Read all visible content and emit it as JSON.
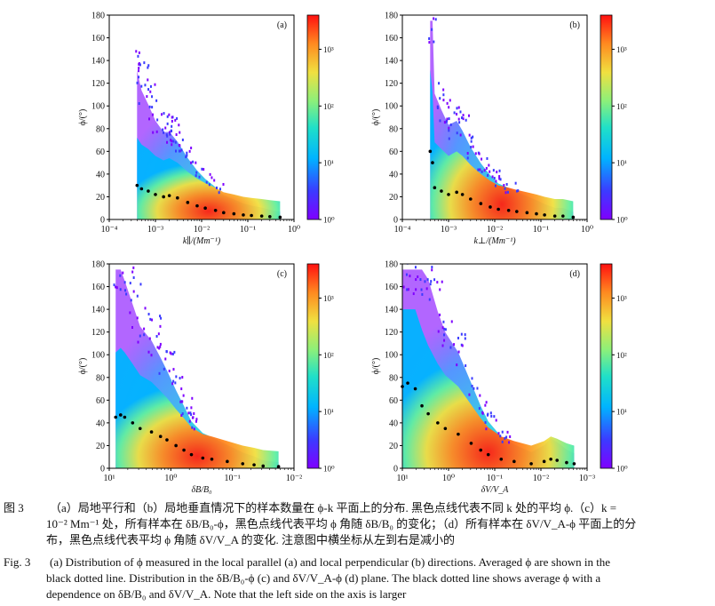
{
  "panels": [
    {
      "id": "a",
      "letter": "(a)",
      "xlabel": "k∥/(Mm⁻¹)",
      "ylabel": "ϕ/(°)",
      "xaxis_direction": "increasing",
      "xtick_labels": [
        "10⁻⁴",
        "10⁻³",
        "10⁻²",
        "10⁻¹",
        "10⁰"
      ],
      "ytick_labels": [
        "0",
        "20",
        "40",
        "60",
        "80",
        "100",
        "120",
        "140",
        "160",
        "180"
      ],
      "colorbar_labels": [
        "10⁰",
        "10¹",
        "10²",
        "10³"
      ]
    },
    {
      "id": "b",
      "letter": "(b)",
      "xlabel": "k⊥/(Mm⁻¹)",
      "ylabel": "ϕ/(°)",
      "xaxis_direction": "increasing",
      "xtick_labels": [
        "10⁻⁴",
        "10⁻³",
        "10⁻²",
        "10⁻¹",
        "10⁰"
      ],
      "ytick_labels": [
        "0",
        "20",
        "40",
        "60",
        "80",
        "100",
        "120",
        "140",
        "160",
        "180"
      ],
      "colorbar_labels": [
        "10⁰",
        "10¹",
        "10²",
        "10³"
      ]
    },
    {
      "id": "c",
      "letter": "(c)",
      "xlabel": "δB/B₀",
      "ylabel": "ϕ/(°)",
      "xaxis_direction": "decreasing",
      "xtick_labels": [
        "10¹",
        "10⁰",
        "10⁻¹",
        "10⁻²"
      ],
      "ytick_labels": [
        "0",
        "20",
        "40",
        "60",
        "80",
        "100",
        "120",
        "140",
        "160",
        "180"
      ],
      "colorbar_labels": [
        "10⁰",
        "10¹",
        "10²",
        "10³"
      ]
    },
    {
      "id": "d",
      "letter": "(d)",
      "xlabel": "δV/V_A",
      "ylabel": "ϕ/(°)",
      "xaxis_direction": "decreasing",
      "xtick_labels": [
        "10¹",
        "10⁰",
        "10⁻¹",
        "10⁻²",
        "10⁻³"
      ],
      "ytick_labels": [
        "0",
        "20",
        "40",
        "60",
        "80",
        "100",
        "120",
        "140",
        "160",
        "180"
      ],
      "colorbar_labels": [
        "10⁰",
        "10¹",
        "10²",
        "10³"
      ]
    }
  ],
  "chart_data": [
    {
      "type": "heatmap",
      "panel": "(a)",
      "xlabel": "k∥/(Mm⁻¹)",
      "ylabel": "ϕ/(°)",
      "x_scale": "log",
      "xlim": [
        0.0001,
        1
      ],
      "ylim": [
        0,
        180
      ],
      "colorbar_scale": "log",
      "colorbar_range": [
        1,
        4000
      ],
      "average_series": {
        "x": [
          0.0004,
          0.0005,
          0.0007,
          0.001,
          0.0015,
          0.002,
          0.003,
          0.005,
          0.008,
          0.012,
          0.02,
          0.03,
          0.05,
          0.08,
          0.12,
          0.2,
          0.3,
          0.5
        ],
        "y": [
          30,
          27,
          25,
          22,
          20,
          21,
          19,
          15,
          12,
          10,
          8,
          6,
          5,
          4,
          3.5,
          3,
          2.5,
          2
        ]
      }
    },
    {
      "type": "heatmap",
      "panel": "(b)",
      "xlabel": "k⊥/(Mm⁻¹)",
      "ylabel": "ϕ/(°)",
      "x_scale": "log",
      "xlim": [
        0.0001,
        1
      ],
      "ylim": [
        0,
        180
      ],
      "colorbar_scale": "log",
      "colorbar_range": [
        1,
        4000
      ],
      "average_series": {
        "x": [
          0.0004,
          0.00045,
          0.0005,
          0.0007,
          0.001,
          0.0015,
          0.002,
          0.003,
          0.005,
          0.008,
          0.012,
          0.02,
          0.03,
          0.05,
          0.08,
          0.12,
          0.2,
          0.3,
          0.5
        ],
        "y": [
          60,
          50,
          28,
          25,
          22,
          24,
          22,
          18,
          14,
          11,
          9,
          8,
          7,
          6,
          5,
          4,
          3,
          3,
          2
        ]
      }
    },
    {
      "type": "heatmap",
      "panel": "(c)",
      "xlabel": "δB/B₀",
      "ylabel": "ϕ/(°)",
      "x_scale": "log",
      "x_reversed": true,
      "xlim": [
        20,
        0.005
      ],
      "ylim": [
        0,
        180
      ],
      "colorbar_scale": "log",
      "colorbar_range": [
        1,
        4000
      ],
      "average_series": {
        "x": [
          15,
          12,
          10,
          7,
          5,
          3,
          2,
          1.5,
          1,
          0.7,
          0.5,
          0.3,
          0.2,
          0.1,
          0.05,
          0.03,
          0.02,
          0.01
        ],
        "y": [
          45,
          47,
          45,
          40,
          35,
          32,
          28,
          25,
          20,
          16,
          12,
          9,
          8,
          6,
          4,
          3,
          2,
          1.5
        ]
      }
    },
    {
      "type": "heatmap",
      "panel": "(d)",
      "xlabel": "δV/V_A",
      "ylabel": "ϕ/(°)",
      "x_scale": "log",
      "x_reversed": true,
      "xlim": [
        20,
        0.001
      ],
      "ylim": [
        0,
        180
      ],
      "colorbar_scale": "log",
      "colorbar_range": [
        1,
        4000
      ],
      "average_series": {
        "x": [
          20,
          15,
          10,
          7,
          5,
          3,
          2,
          1,
          0.5,
          0.3,
          0.2,
          0.1,
          0.05,
          0.02,
          0.01,
          0.007,
          0.005,
          0.003,
          0.002
        ],
        "y": [
          72,
          75,
          70,
          55,
          48,
          40,
          35,
          30,
          22,
          16,
          12,
          8,
          6,
          4,
          6,
          8,
          7,
          5,
          4
        ]
      }
    }
  ],
  "caption_cn": {
    "label": "图 3",
    "line1": "（a）局地平行和（b）局地垂直情况下的样本数量在 ϕ-k 平面上的分布. 黑色点线代表不同 k 处的平均 ϕ.（c）k =",
    "line2": "10⁻² Mm⁻¹ 处，所有样本在 δB/B₀-ϕ，黑色点线代表平均 ϕ 角随 δB/B₀ 的变化；（d）所有样本在 δV/V_A-ϕ 平面上的分",
    "line3": "布，黑色点线代表平均 ϕ 角随 δV/V_A 的变化. 注意图中横坐标从左到右是减小的"
  },
  "caption_en": {
    "label": "Fig. 3",
    "line1": "(a) Distribution of ϕ measured in the local parallel (a) and local perpendicular (b) directions. Averaged ϕ are shown in the",
    "line2": "black dotted line. Distribution in the δB/B₀-ϕ (c) and δV/V_A-ϕ (d) plane. The black dotted line shows average ϕ with a",
    "line3": "dependence on δB/B₀ and δV/V_A. Note that the left side on the axis is larger"
  }
}
